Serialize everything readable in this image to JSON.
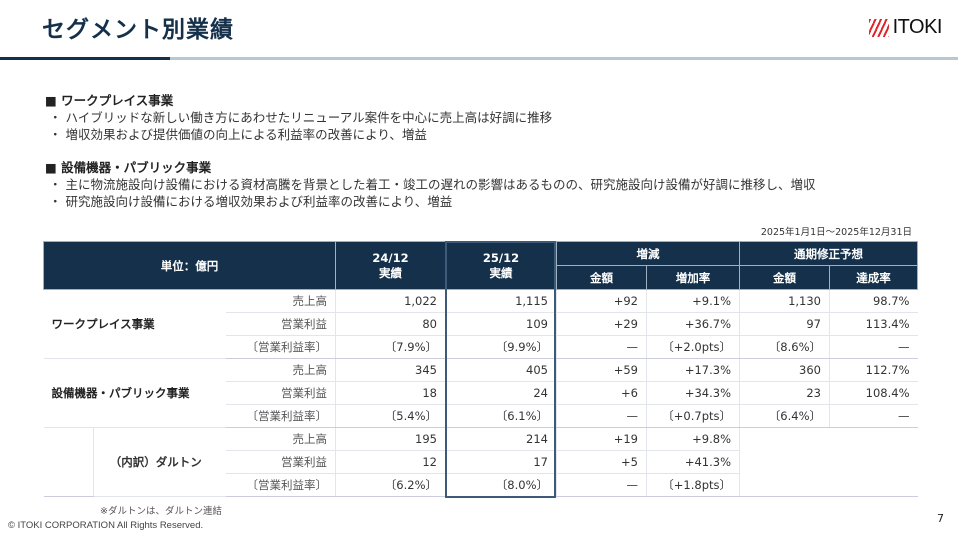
{
  "header": {
    "title": "セグメント別業績",
    "logo_text": "ITOKI"
  },
  "sections": [
    {
      "heading": "■ ワークプレイス事業",
      "bullets": [
        "・ ハイブリッドな新しい働き方にあわせたリニューアル案件を中心に売上高は好調に推移",
        "・ 増収効果および提供価値の向上による利益率の改善により、増益"
      ]
    },
    {
      "heading": "■ 設備機器・パブリック事業",
      "bullets": [
        "・ 主に物流施設向け設備における資材高騰を背景とした着工・竣工の遅れの影響はあるものの、研究施設向け設備が好調に推移し、増収",
        "・ 研究施設向け設備における増収効果および利益率の改善により、増益"
      ]
    }
  ],
  "period": "2025年1月1日～2025年12月31日",
  "table": {
    "unit": "単位：億円",
    "col_prev": "24/12",
    "col_prev_sub": "実績",
    "col_cur": "25/12",
    "col_cur_sub": "実績",
    "change": "増減",
    "change_amount": "金額",
    "change_rate": "増加率",
    "forecast": "通期修正予想",
    "forecast_amount": "金額",
    "forecast_rate": "達成率",
    "segments": [
      {
        "name": "ワークプレイス事業",
        "rows": [
          [
            "売上高",
            "1,022",
            "1,115",
            "+92",
            "+9.1%",
            "1,130",
            "98.7%"
          ],
          [
            "営業利益",
            "80",
            "109",
            "+29",
            "+36.7%",
            "97",
            "113.4%"
          ],
          [
            "〔営業利益率〕",
            "〔7.9%〕",
            "〔9.9%〕",
            "—",
            "〔+2.0pts〕",
            "〔8.6%〕",
            "—"
          ]
        ]
      },
      {
        "name": "設備機器・パブリック事業",
        "rows": [
          [
            "売上高",
            "345",
            "405",
            "+59",
            "+17.3%",
            "360",
            "112.7%"
          ],
          [
            "営業利益",
            "18",
            "24",
            "+6",
            "+34.3%",
            "23",
            "108.4%"
          ],
          [
            "〔営業利益率〕",
            "〔5.4%〕",
            "〔6.1%〕",
            "—",
            "〔+0.7pts〕",
            "〔6.4%〕",
            "—"
          ]
        ]
      },
      {
        "name": "（内訳）ダルトン",
        "rows": [
          [
            "売上高",
            "195",
            "214",
            "+19",
            "+9.8%"
          ],
          [
            "営業利益",
            "12",
            "17",
            "+5",
            "+41.3%"
          ],
          [
            "〔営業利益率〕",
            "〔6.2%〕",
            "〔8.0%〕",
            "—",
            "〔+1.8pts〕"
          ]
        ]
      }
    ]
  },
  "note": "※ダルトンは、ダルトン連結",
  "footer": {
    "copyright": "© ITOKI CORPORATION All Rights Reserved.",
    "page": "7"
  },
  "colors": {
    "navy": "#14304a",
    "accent_red": "#e0262b"
  }
}
